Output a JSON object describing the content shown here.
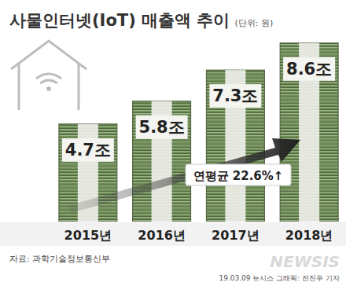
{
  "chart_data": {
    "type": "bar",
    "title": "사물인터넷(IoT) 매출액 추이",
    "subtitle": "(단위: 원)",
    "categories": [
      "2015년",
      "2016년",
      "2017년",
      "2018년"
    ],
    "values": [
      4.7,
      5.8,
      7.3,
      8.6
    ],
    "value_labels": [
      "4.7조",
      "5.8조",
      "7.3조",
      "8.6조"
    ],
    "data_labels": true,
    "color": "#6f8f55",
    "ylim": [
      0,
      9.5
    ],
    "tick_labels": "x",
    "grid": false,
    "annotation": "연평균 22.6%↑",
    "source": "자료: 과학기술정보통신부",
    "credit": "19.03.09 뉴시스 그래픽: 전진우 기자",
    "watermark": "NEWSIS"
  }
}
